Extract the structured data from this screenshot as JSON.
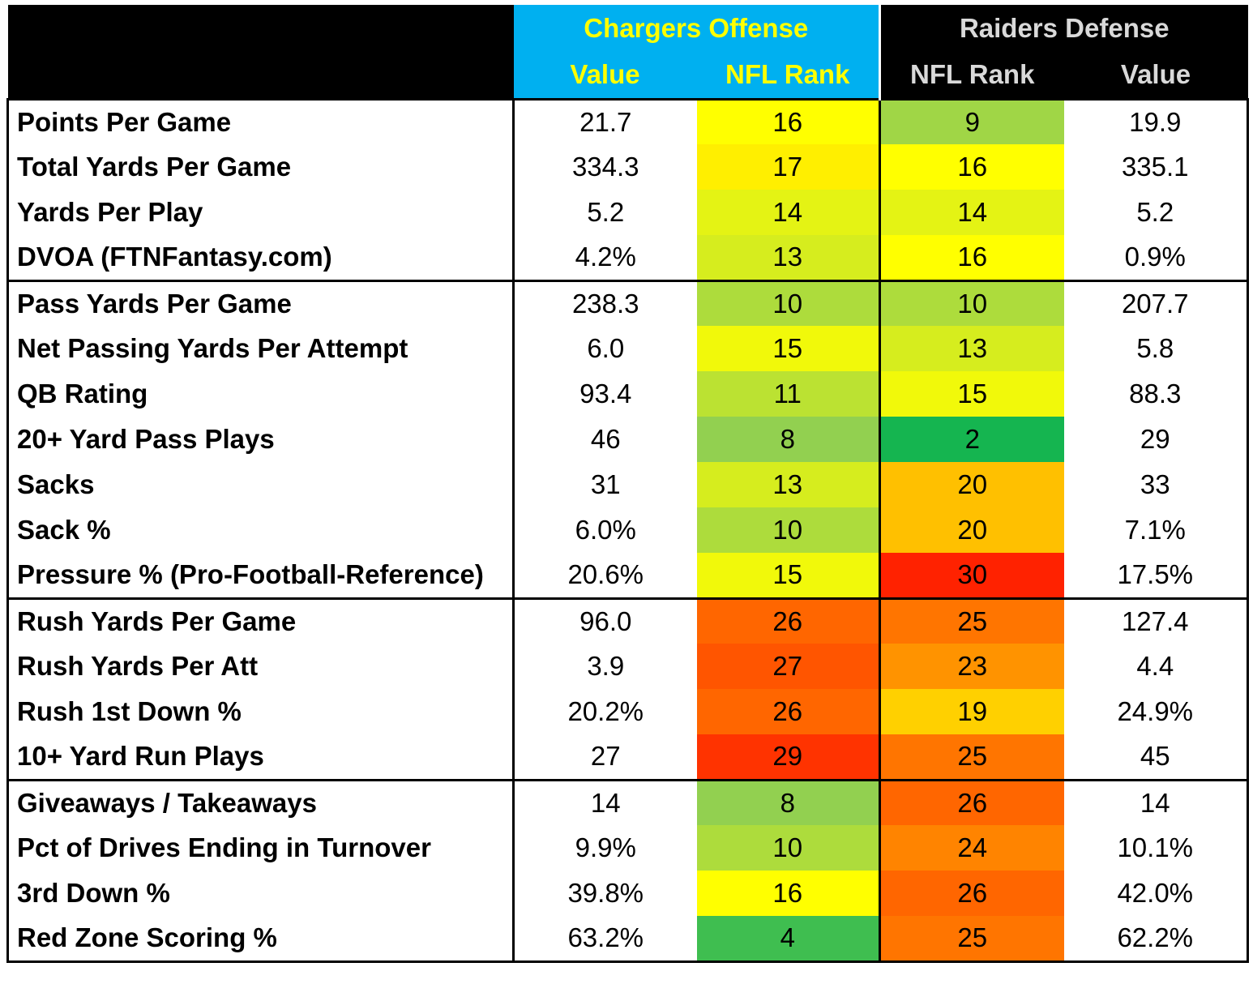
{
  "header": {
    "offense_title": "Chargers Offense",
    "defense_title": "Raiders Defense",
    "col_value": "Value",
    "col_rank": "NFL Rank"
  },
  "colors": {
    "offense_header_bg": "#00b0f0",
    "offense_header_text": "#ffff00",
    "defense_header_bg": "#000000",
    "defense_header_text": "#d9d9d9",
    "rank_scale": "green (best, 1) → yellow (16) → orange → red (worst, 32)"
  },
  "chart_data": {
    "type": "table",
    "columns": [
      "",
      "Value",
      "NFL Rank",
      "NFL Rank",
      "Value"
    ],
    "groups": [
      {
        "rows": [
          {
            "stat": "Points Per Game",
            "off_value": "21.7",
            "off_rank": 16,
            "def_rank": 9,
            "def_value": "19.9"
          },
          {
            "stat": "Total Yards Per Game",
            "off_value": "334.3",
            "off_rank": 17,
            "def_rank": 16,
            "def_value": "335.1"
          },
          {
            "stat": "Yards Per Play",
            "off_value": "5.2",
            "off_rank": 14,
            "def_rank": 14,
            "def_value": "5.2"
          },
          {
            "stat": "DVOA (FTNFantasy.com)",
            "off_value": "4.2%",
            "off_rank": 13,
            "def_rank": 16,
            "def_value": "0.9%"
          }
        ]
      },
      {
        "rows": [
          {
            "stat": "Pass Yards Per Game",
            "off_value": "238.3",
            "off_rank": 10,
            "def_rank": 10,
            "def_value": "207.7"
          },
          {
            "stat": "Net Passing Yards Per Attempt",
            "off_value": "6.0",
            "off_rank": 15,
            "def_rank": 13,
            "def_value": "5.8"
          },
          {
            "stat": "QB Rating",
            "off_value": "93.4",
            "off_rank": 11,
            "def_rank": 15,
            "def_value": "88.3"
          },
          {
            "stat": "20+ Yard Pass Plays",
            "off_value": "46",
            "off_rank": 8,
            "def_rank": 2,
            "def_value": "29"
          },
          {
            "stat": "Sacks",
            "off_value": "31",
            "off_rank": 13,
            "def_rank": 20,
            "def_value": "33"
          },
          {
            "stat": "Sack %",
            "off_value": "6.0%",
            "off_rank": 10,
            "def_rank": 20,
            "def_value": "7.1%"
          },
          {
            "stat": "Pressure % (Pro-Football-Reference)",
            "off_value": "20.6%",
            "off_rank": 15,
            "def_rank": 30,
            "def_value": "17.5%"
          }
        ]
      },
      {
        "rows": [
          {
            "stat": "Rush Yards Per Game",
            "off_value": "96.0",
            "off_rank": 26,
            "def_rank": 25,
            "def_value": "127.4"
          },
          {
            "stat": "Rush Yards Per Att",
            "off_value": "3.9",
            "off_rank": 27,
            "def_rank": 23,
            "def_value": "4.4"
          },
          {
            "stat": "Rush 1st Down %",
            "off_value": "20.2%",
            "off_rank": 26,
            "def_rank": 19,
            "def_value": "24.9%"
          },
          {
            "stat": "10+ Yard Run Plays",
            "off_value": "27",
            "off_rank": 29,
            "def_rank": 25,
            "def_value": "45"
          }
        ]
      },
      {
        "rows": [
          {
            "stat": "Giveaways / Takeaways",
            "off_value": "14",
            "off_rank": 8,
            "def_rank": 26,
            "def_value": "14"
          },
          {
            "stat": "Pct of Drives Ending in Turnover",
            "off_value": "9.9%",
            "off_rank": 10,
            "def_rank": 24,
            "def_value": "10.1%"
          },
          {
            "stat": "3rd Down %",
            "off_value": "39.8%",
            "off_rank": 16,
            "def_rank": 26,
            "def_value": "42.0%"
          },
          {
            "stat": "Red Zone Scoring %",
            "off_value": "63.2%",
            "off_rank": 4,
            "def_rank": 25,
            "def_value": "62.2%"
          }
        ]
      }
    ]
  }
}
